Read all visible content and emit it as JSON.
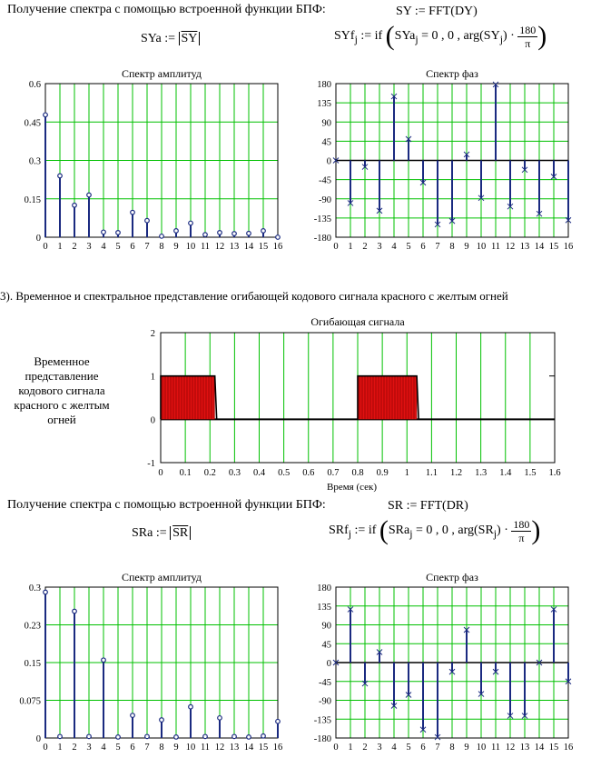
{
  "section1": {
    "intro": "Получение спектра с помощью встроенной функции БПФ:",
    "fft_eq": "SY := FFT(DY)",
    "amp_eq_left": "SYa :=",
    "amp_eq_arg": "SY",
    "phase_eq_left": "SYf",
    "phase_eq_sub": "j",
    "phase_eq_mid": ":= if",
    "phase_eq_cond": "SYa",
    "phase_eq_rest": "= 0 , 0 , arg(SY",
    "phase_eq_close": ") ·",
    "frac_num": "180",
    "frac_den": "π"
  },
  "section2": {
    "heading": "3). Временное и спектральное представление огибающей кодового сигнала красного с желтым огней",
    "side_label": "Временное представление кодового сигнала красного с желтым огней",
    "xlabel": "Время (сек)"
  },
  "section3": {
    "intro": "Получение спектра с помощью встроенной функции БПФ:",
    "fft_eq": "SR := FFT(DR)",
    "amp_eq_left": "SRa :=",
    "amp_eq_arg": "SR",
    "phase_eq_left": "SRf",
    "phase_eq_sub": "j",
    "phase_eq_mid": ":= if",
    "phase_eq_cond": "SRa",
    "phase_eq_rest": "= 0 , 0 , arg(SR",
    "phase_eq_close": ") ·",
    "frac_num": "180",
    "frac_den": "π"
  },
  "chart_data": [
    {
      "type": "scatter",
      "title": "Спектр амплитуд",
      "x": [
        0,
        1,
        2,
        3,
        4,
        5,
        6,
        7,
        8,
        9,
        10,
        11,
        12,
        13,
        14,
        15,
        16
      ],
      "values": [
        0.478,
        0.24,
        0.125,
        0.165,
        0.02,
        0.018,
        0.097,
        0.065,
        0.004,
        0.025,
        0.055,
        0.01,
        0.018,
        0.014,
        0.015,
        0.025,
        0.0
      ],
      "ylim": [
        0,
        0.6
      ],
      "yticks": [
        "0",
        "0.15",
        "0.3",
        "0.45",
        "0.6"
      ],
      "xticks": [
        "0",
        "1",
        "2",
        "3",
        "4",
        "5",
        "6",
        "7",
        "8",
        "9",
        "10",
        "11",
        "12",
        "13",
        "14",
        "15",
        "16"
      ],
      "colors": {
        "stem": "#1a2a80",
        "grid": "#00c000"
      }
    },
    {
      "type": "scatter",
      "title": "Спектр фаз",
      "x": [
        0,
        1,
        2,
        3,
        4,
        5,
        6,
        7,
        8,
        9,
        10,
        11,
        12,
        13,
        14,
        15,
        16
      ],
      "values": [
        0,
        -100,
        -15,
        -118,
        150,
        50,
        -52,
        -150,
        -142,
        14,
        -88,
        178,
        -108,
        -22,
        -125,
        -38,
        -140
      ],
      "ylim": [
        -180,
        180
      ],
      "yticks": [
        "-180",
        "-135",
        "-90",
        "-45",
        "0",
        "45",
        "90",
        "135",
        "180"
      ],
      "xticks": [
        "0",
        "1",
        "2",
        "3",
        "4",
        "5",
        "6",
        "7",
        "8",
        "9",
        "10",
        "11",
        "12",
        "13",
        "14",
        "15",
        "16"
      ],
      "colors": {
        "stem": "#1a2a80",
        "grid": "#00c000"
      }
    },
    {
      "type": "line",
      "title": "Огибающая сигнала",
      "xlabel": "Время (сек)",
      "xlim": [
        0,
        1.6
      ],
      "ylim": [
        -1,
        2
      ],
      "xticks": [
        "0",
        "0.1",
        "0.2",
        "0.3",
        "0.4",
        "0.5",
        "0.6",
        "0.7",
        "0.8",
        "0.9",
        "1",
        "1.1",
        "1.2",
        "1.3",
        "1.4",
        "1.5",
        "1.6"
      ],
      "yticks": [
        "-1",
        "0",
        "1",
        "2"
      ],
      "pulses": [
        [
          0.0,
          0.22
        ],
        [
          0.8,
          1.04
        ]
      ],
      "colors": {
        "fill": "#e01010",
        "line": "#000000",
        "grid": "#00c000"
      }
    },
    {
      "type": "scatter",
      "title": "Спектр амплитуд",
      "x": [
        0,
        1,
        2,
        3,
        4,
        5,
        6,
        7,
        8,
        9,
        10,
        11,
        12,
        13,
        14,
        15,
        16
      ],
      "values": [
        0.29,
        0.003,
        0.252,
        0.003,
        0.155,
        0.002,
        0.045,
        0.003,
        0.036,
        0.002,
        0.062,
        0.003,
        0.04,
        0.003,
        0.002,
        0.004,
        0.033
      ],
      "ylim": [
        0,
        0.3
      ],
      "yticks": [
        "0",
        "0.075",
        "0.15",
        "0.23",
        "0.3"
      ],
      "xticks": [
        "0",
        "1",
        "2",
        "3",
        "4",
        "5",
        "6",
        "7",
        "8",
        "9",
        "10",
        "11",
        "12",
        "13",
        "14",
        "15",
        "16"
      ],
      "colors": {
        "stem": "#1a2a80",
        "grid": "#00c000"
      }
    },
    {
      "type": "scatter",
      "title": "Спектр фаз",
      "x": [
        0,
        1,
        2,
        3,
        4,
        5,
        6,
        7,
        8,
        9,
        10,
        11,
        12,
        13,
        14,
        15,
        16
      ],
      "values": [
        0,
        127,
        -50,
        25,
        -103,
        -77,
        -160,
        -178,
        -22,
        78,
        -75,
        -22,
        -127,
        -127,
        0,
        127,
        -45
      ],
      "ylim": [
        -180,
        180
      ],
      "yticks": [
        "-180",
        "-135",
        "-90",
        "-45",
        "0",
        "45",
        "90",
        "135",
        "180"
      ],
      "xticks": [
        "0",
        "1",
        "2",
        "3",
        "4",
        "5",
        "6",
        "7",
        "8",
        "9",
        "10",
        "11",
        "12",
        "13",
        "14",
        "15",
        "16"
      ],
      "colors": {
        "stem": "#1a2a80",
        "grid": "#00c000"
      }
    }
  ]
}
